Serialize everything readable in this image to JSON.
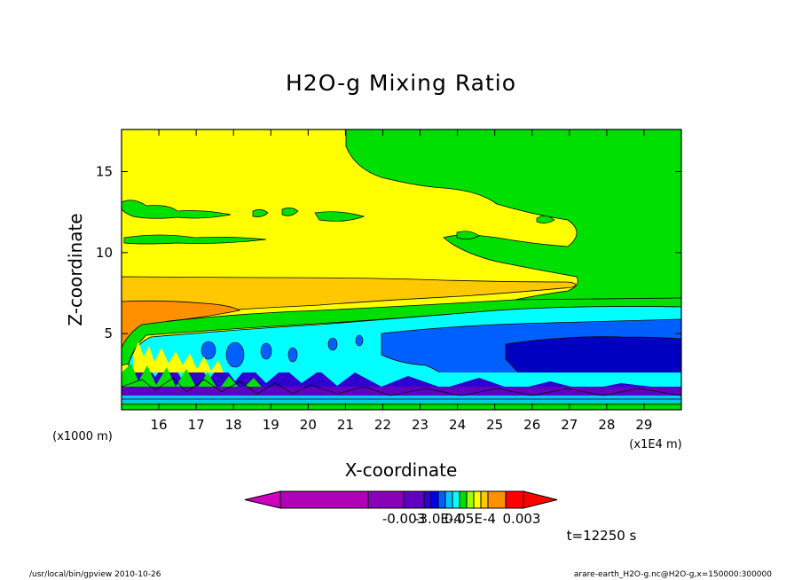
{
  "chart_data": {
    "type": "heatmap",
    "title": "H2O-g Mixing Ratio",
    "xlabel": "X-coordinate",
    "ylabel": "Z-coordinate",
    "x_unit": "(x1E4 m)",
    "y_unit": "(x1000 m)",
    "xlim": [
      15.0,
      30.0
    ],
    "ylim": [
      0.3,
      17.6
    ],
    "x_ticks": [
      16,
      17,
      18,
      19,
      20,
      21,
      22,
      23,
      24,
      25,
      26,
      27,
      28,
      29
    ],
    "y_ticks": [
      5,
      10,
      15
    ],
    "time_label": "t=12250 s",
    "colorbar": {
      "colors": [
        "#d000c0",
        "#b000b8",
        "#8800b8",
        "#6000c0",
        "#3000d0",
        "#0000e8",
        "#0060ff",
        "#00c8ff",
        "#00ffff",
        "#00e000",
        "#a0ff00",
        "#ffff00",
        "#ffc800",
        "#ff9000",
        "#ff0000"
      ],
      "tick_labels": [
        "-0.003",
        "-3.0E-4",
        "0.05E-4",
        "0.003"
      ]
    },
    "footer_left": "/usr/local/bin/gpview  2010-10-26",
    "footer_right": "arare-earth_H2O-g.nc@H2O-g,x=150000:300000"
  }
}
